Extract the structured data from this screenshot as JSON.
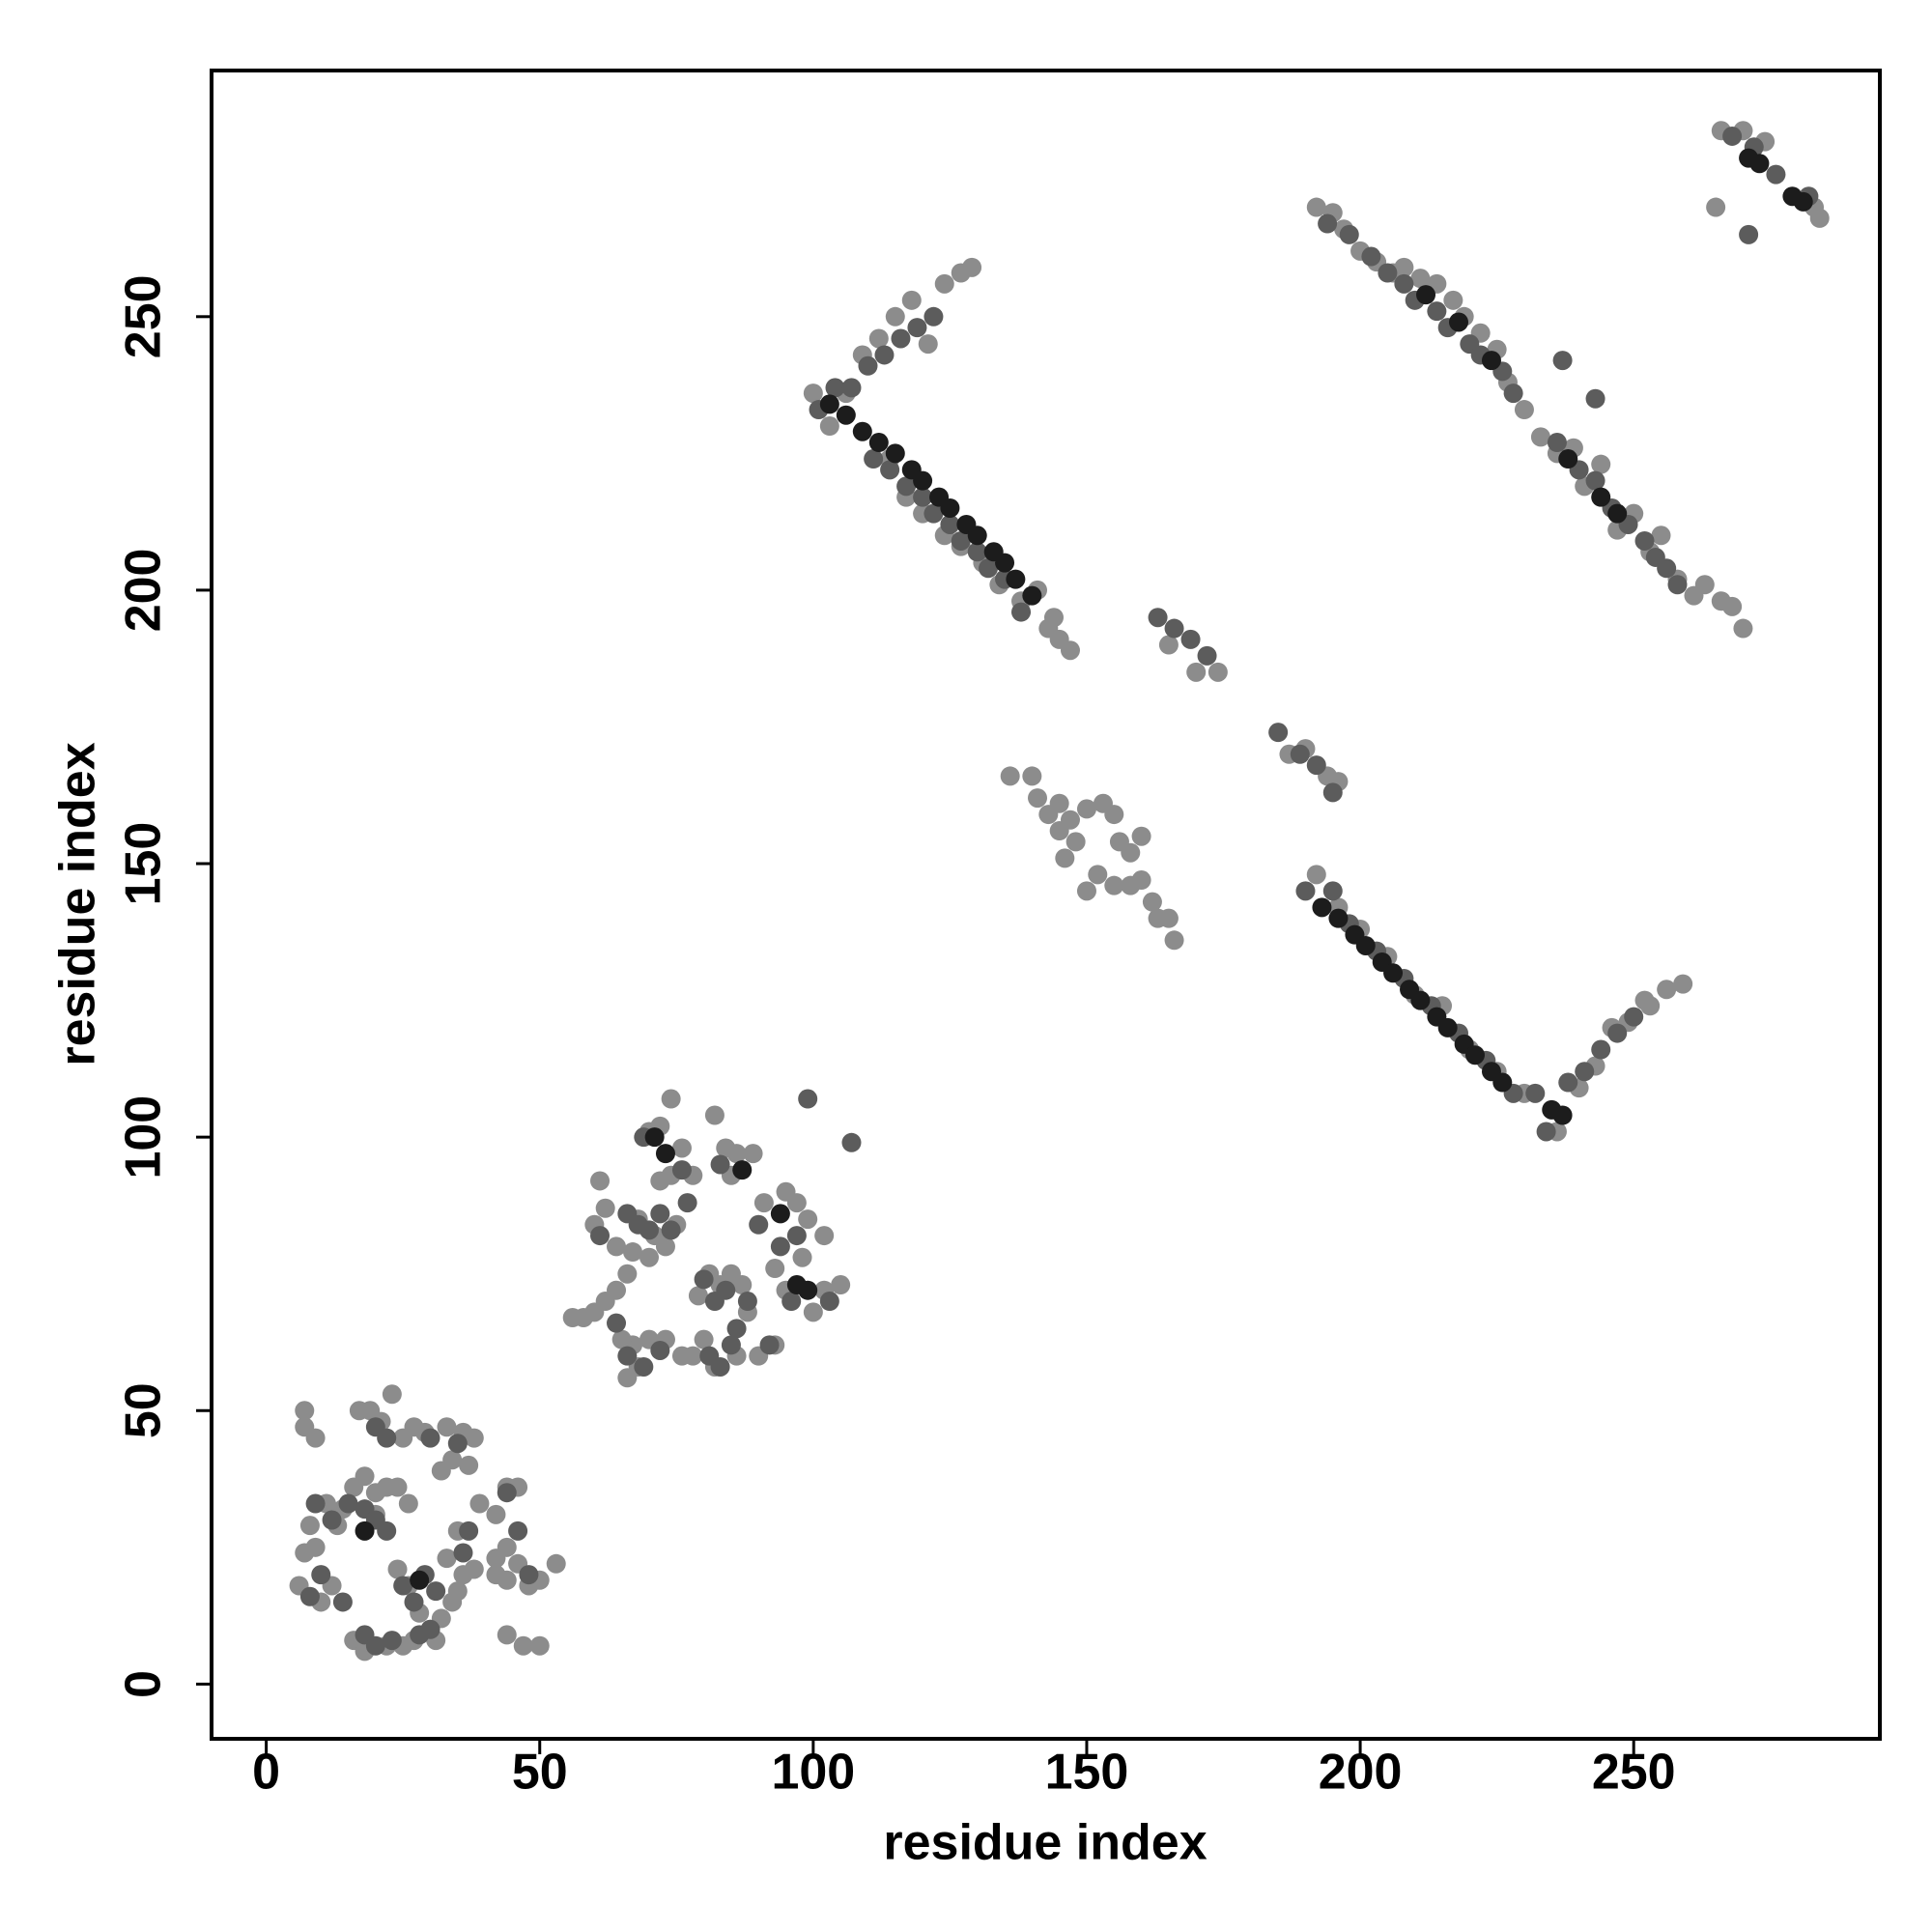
{
  "chart_data": {
    "type": "scatter",
    "xlabel": "residue index",
    "ylabel": "residue index",
    "xlim": [
      -10,
      295
    ],
    "ylim": [
      -10,
      295
    ],
    "xticks": [
      0,
      50,
      100,
      150,
      200,
      250
    ],
    "yticks": [
      0,
      50,
      100,
      150,
      200,
      250
    ],
    "series": [
      {
        "color": "#8c8c8c",
        "x": [
          100,
          103,
          106,
          109,
          112,
          115,
          118,
          121,
          124,
          127,
          129,
          114,
          117,
          120,
          124,
          127,
          131,
          134,
          138,
          141,
          143,
          145,
          147,
          144,
          192,
          195,
          197,
          200,
          203,
          206,
          208,
          211,
          214,
          217,
          219,
          222,
          225,
          227,
          230,
          233,
          236,
          239,
          241,
          244,
          247,
          250,
          253,
          255,
          258,
          261,
          263,
          266,
          268,
          270,
          192,
          196,
          200,
          205,
          210,
          215,
          220,
          225,
          230,
          236,
          240,
          243,
          246,
          249,
          253,
          256,
          259,
          252,
          136,
          140,
          141,
          143,
          145,
          147,
          148,
          146,
          150,
          153,
          155,
          156,
          158,
          160,
          152,
          155,
          158,
          160,
          162,
          163,
          165,
          166,
          150,
          145,
          187,
          190,
          194,
          196,
          165,
          170,
          174,
          266,
          270,
          274,
          283,
          284,
          265,
          56,
          58,
          60,
          62,
          64,
          66,
          67,
          60,
          62,
          64,
          68,
          70,
          71,
          73,
          75,
          72,
          74,
          70,
          72,
          74,
          67,
          70,
          73,
          76,
          78,
          66,
          68,
          79,
          81,
          83,
          85,
          87,
          88,
          80,
          82,
          86,
          90,
          93,
          82,
          84,
          86,
          89,
          85,
          91,
          95,
          97,
          99,
          102,
          93,
          95,
          100,
          102,
          105,
          98,
          61,
          78,
          76,
          65,
          6,
          7,
          8,
          9,
          7,
          7,
          9,
          11,
          13,
          10,
          12,
          16,
          18,
          20,
          22,
          24,
          26,
          17,
          19,
          21,
          23,
          25,
          27,
          29,
          33,
          36,
          38,
          32,
          34,
          37,
          39,
          42,
          44,
          46,
          42,
          44,
          46,
          48,
          50,
          53,
          44,
          42,
          24,
          26,
          28,
          30,
          32,
          34,
          36,
          33,
          35,
          16,
          18,
          22,
          25,
          27,
          31,
          44,
          47,
          50,
          20,
          14,
          35,
          38
        ],
        "values": [
          236,
          230,
          236,
          243,
          246,
          250,
          253,
          245,
          256,
          258,
          259,
          224,
          217,
          214,
          210,
          208,
          205,
          201,
          198,
          200,
          193,
          191,
          189,
          195,
          270,
          269,
          266,
          262,
          260,
          258,
          259,
          257,
          256,
          253,
          250,
          247,
          244,
          238,
          233,
          228,
          225,
          226,
          219,
          223,
          211,
          214,
          207,
          210,
          202,
          199,
          201,
          198,
          197,
          193,
          148,
          142,
          138,
          133,
          126,
          124,
          116,
          112,
          108,
          101,
          109,
          113,
          120,
          121,
          124,
          127,
          128,
          125,
          166,
          166,
          162,
          159,
          161,
          158,
          154,
          151,
          160,
          161,
          159,
          154,
          152,
          155,
          148,
          146,
          146,
          147,
          143,
          140,
          140,
          136,
          145,
          156,
          170,
          171,
          166,
          165,
          190,
          185,
          185,
          284,
          284,
          282,
          270,
          268,
          270,
          67,
          67,
          68,
          70,
          72,
          75,
          79,
          84,
          87,
          80,
          85,
          78,
          82,
          80,
          84,
          92,
          93,
          101,
          102,
          107,
          62,
          63,
          63,
          60,
          60,
          56,
          58,
          71,
          75,
          73,
          75,
          73,
          68,
          63,
          58,
          60,
          60,
          62,
          104,
          98,
          97,
          97,
          93,
          88,
          90,
          88,
          85,
          82,
          76,
          72,
          68,
          72,
          73,
          78,
          92,
          93,
          98,
          63,
          18,
          24,
          29,
          25,
          50,
          47,
          45,
          33,
          29,
          15,
          18,
          36,
          38,
          35,
          36,
          36,
          33,
          50,
          50,
          48,
          53,
          45,
          47,
          46,
          47,
          46,
          45,
          39,
          41,
          40,
          33,
          31,
          36,
          36,
          20,
          19,
          22,
          18,
          19,
          22,
          25,
          23,
          21,
          18,
          13,
          10,
          12,
          15,
          20,
          23,
          17,
          8,
          6,
          7,
          7,
          8,
          8,
          9,
          7,
          7,
          31,
          32,
          28,
          21
        ]
      },
      {
        "color": "#5c5c5c",
        "x": [
          101,
          104,
          107,
          110,
          113,
          116,
          119,
          122,
          111,
          114,
          117,
          120,
          122,
          125,
          127,
          130,
          132,
          135,
          138,
          190,
          195,
          198,
          203,
          208,
          213,
          218,
          223,
          228,
          232,
          234,
          238,
          241,
          244,
          247,
          250,
          194,
          198,
          202,
          205,
          208,
          210,
          214,
          216,
          220,
          222,
          226,
          228,
          236,
          240,
          243,
          246,
          249,
          252,
          254,
          256,
          258,
          237,
          243,
          163,
          166,
          169,
          172,
          185,
          189,
          192,
          195,
          268,
          272,
          276,
          282,
          271,
          66,
          68,
          70,
          72,
          61,
          64,
          66,
          69,
          72,
          80,
          82,
          84,
          86,
          88,
          81,
          83,
          85,
          90,
          94,
          97,
          96,
          103,
          92,
          99,
          107,
          76,
          83,
          69,
          74,
          77,
          8,
          10,
          12,
          15,
          18,
          20,
          22,
          25,
          27,
          29,
          31,
          18,
          20,
          23,
          28,
          20,
          22,
          30,
          35,
          37,
          44,
          46,
          48,
          36,
          30,
          9,
          14
        ],
        "values": [
          233,
          237,
          237,
          241,
          243,
          246,
          248,
          250,
          224,
          222,
          219,
          217,
          214,
          212,
          209,
          207,
          204,
          202,
          196,
          145,
          145,
          139,
          134,
          129,
          124,
          119,
          114,
          108,
          108,
          101,
          110,
          112,
          116,
          119,
          122,
          267,
          265,
          261,
          258,
          256,
          253,
          251,
          248,
          245,
          243,
          240,
          236,
          227,
          222,
          220,
          215,
          212,
          209,
          206,
          204,
          201,
          242,
          235,
          195,
          193,
          191,
          188,
          174,
          170,
          168,
          163,
          283,
          281,
          276,
          272,
          265,
          86,
          84,
          83,
          86,
          82,
          66,
          60,
          58,
          61,
          74,
          70,
          72,
          65,
          70,
          60,
          58,
          62,
          84,
          80,
          82,
          70,
          70,
          62,
          107,
          99,
          94,
          95,
          100,
          83,
          88,
          16,
          20,
          30,
          33,
          32,
          30,
          28,
          18,
          15,
          20,
          17,
          9,
          7,
          8,
          9,
          47,
          45,
          45,
          44,
          28,
          35,
          28,
          20,
          24,
          10,
          33,
          15
        ]
      },
      {
        "color": "#1c1c1c",
        "x": [
          103,
          106,
          109,
          112,
          115,
          118,
          120,
          123,
          125,
          128,
          130,
          133,
          135,
          137,
          140,
          193,
          196,
          199,
          201,
          204,
          206,
          209,
          211,
          214,
          216,
          219,
          221,
          224,
          226,
          235,
          237,
          271,
          273,
          279,
          281,
          212,
          218,
          224,
          238,
          244,
          247,
          71,
          73,
          99,
          97,
          94,
          87,
          18,
          28
        ],
        "values": [
          234,
          232,
          229,
          227,
          225,
          222,
          220,
          217,
          215,
          212,
          210,
          207,
          205,
          202,
          199,
          142,
          140,
          137,
          135,
          132,
          130,
          127,
          125,
          122,
          120,
          117,
          115,
          112,
          110,
          105,
          104,
          279,
          278,
          272,
          271,
          254,
          249,
          242,
          224,
          217,
          214,
          100,
          97,
          72,
          73,
          86,
          94,
          28,
          19
        ]
      }
    ]
  }
}
